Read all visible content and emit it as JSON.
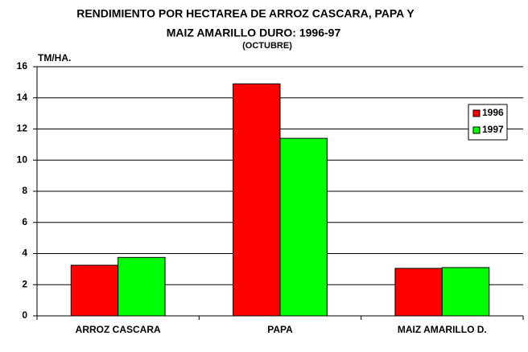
{
  "chart_data": {
    "type": "bar",
    "title": [
      "RENDIMIENTO POR HECTAREA DE ARROZ CASCARA, PAPA Y",
      "MAIZ AMARILLO DURO: 1996-97"
    ],
    "subtitle": "(OCTUBRE)",
    "y_label": "TM/HA.",
    "categories": [
      "ARROZ CASCARA",
      "PAPA",
      "MAIZ AMARILLO D."
    ],
    "series": [
      {
        "name": "1996",
        "color": "#ff0000",
        "values": [
          3.25,
          14.9,
          3.05
        ]
      },
      {
        "name": "1997",
        "color": "#00ff00",
        "values": [
          3.75,
          11.4,
          3.1
        ]
      }
    ],
    "ylim": [
      0,
      16
    ],
    "yticks": [
      0,
      2,
      4,
      6,
      8,
      10,
      12,
      14,
      16
    ],
    "grid": true,
    "legend": "right"
  }
}
